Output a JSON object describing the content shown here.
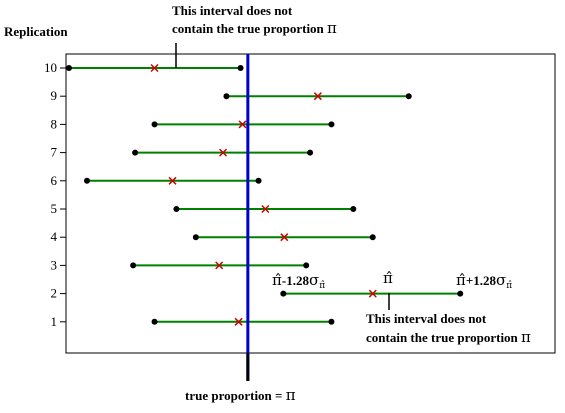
{
  "chart_data": {
    "type": "interval",
    "title": "",
    "ylabel": "Replication",
    "replications": [
      {
        "rep": "10",
        "low": 0.0,
        "est": 0.176,
        "high": 0.353
      },
      {
        "rep": "9",
        "low": 0.324,
        "est": 0.512,
        "high": 0.699
      },
      {
        "rep": "8",
        "low": 0.176,
        "est": 0.357,
        "high": 0.54
      },
      {
        "rep": "7",
        "low": 0.136,
        "est": 0.317,
        "high": 0.496
      },
      {
        "rep": "6",
        "low": 0.037,
        "est": 0.213,
        "high": 0.39
      },
      {
        "rep": "5",
        "low": 0.221,
        "est": 0.404,
        "high": 0.585
      },
      {
        "rep": "4",
        "low": 0.261,
        "est": 0.443,
        "high": 0.625
      },
      {
        "rep": "3",
        "low": 0.132,
        "est": 0.309,
        "high": 0.488
      },
      {
        "rep": "2",
        "low": 0.441,
        "est": 0.625,
        "high": 0.805
      },
      {
        "rep": "1",
        "low": 0.176,
        "est": 0.349,
        "high": 0.54
      }
    ],
    "true_value": 0.368,
    "xlim": [
      0,
      1
    ]
  },
  "annotations": {
    "top_line1": "This interval does not",
    "top_line2_prefix": "contain the true proportion ",
    "pi_symbol": "π",
    "bottom_line1": "This interval does not",
    "bottom_line2_prefix": "contain the true proportion ",
    "true_label_prefix": "true proportion = ",
    "lower_bound_label": "-1.28",
    "upper_bound_label": "+1.28",
    "sigma": "σ",
    "pi_hat": "π̂"
  },
  "colors": {
    "interval": "#008000",
    "estimate": "#cc0000",
    "true_line": "#0000cc",
    "frame": "#000000"
  }
}
